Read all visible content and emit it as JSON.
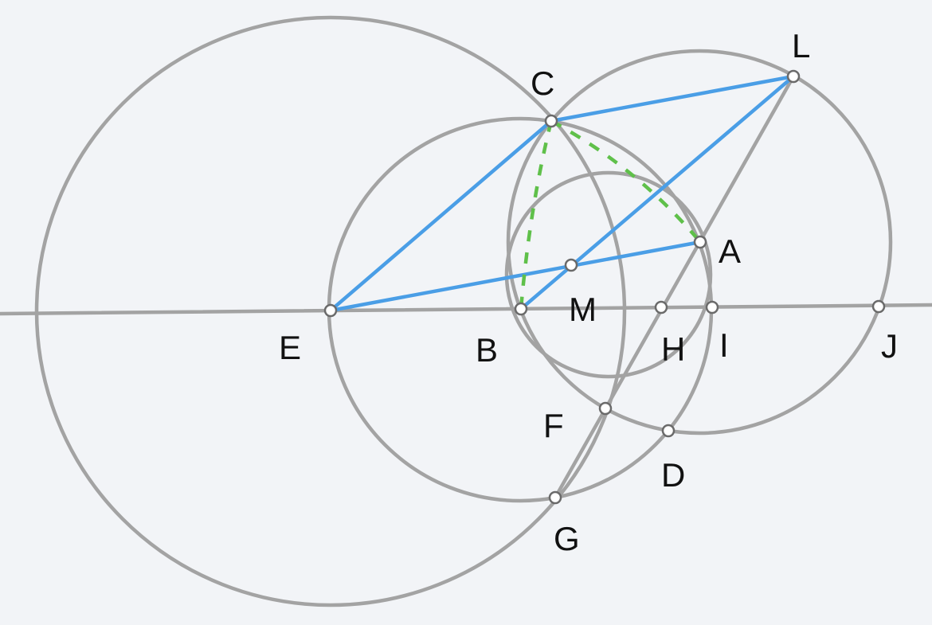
{
  "colors": {
    "background": "#f2f4f7",
    "construction": "#a3a3a3",
    "segments": "#4a9ee6",
    "dashed_arcs": "#5fc04a",
    "point_fill": "#ffffff",
    "point_stroke": "#6a6a6a",
    "labels": "#111111"
  },
  "points": {
    "A": "A",
    "B": "B",
    "C": "C",
    "D": "D",
    "E": "E",
    "F": "F",
    "G": "G",
    "H": "H",
    "I": "I",
    "J": "J",
    "L": "L",
    "M": "M"
  }
}
